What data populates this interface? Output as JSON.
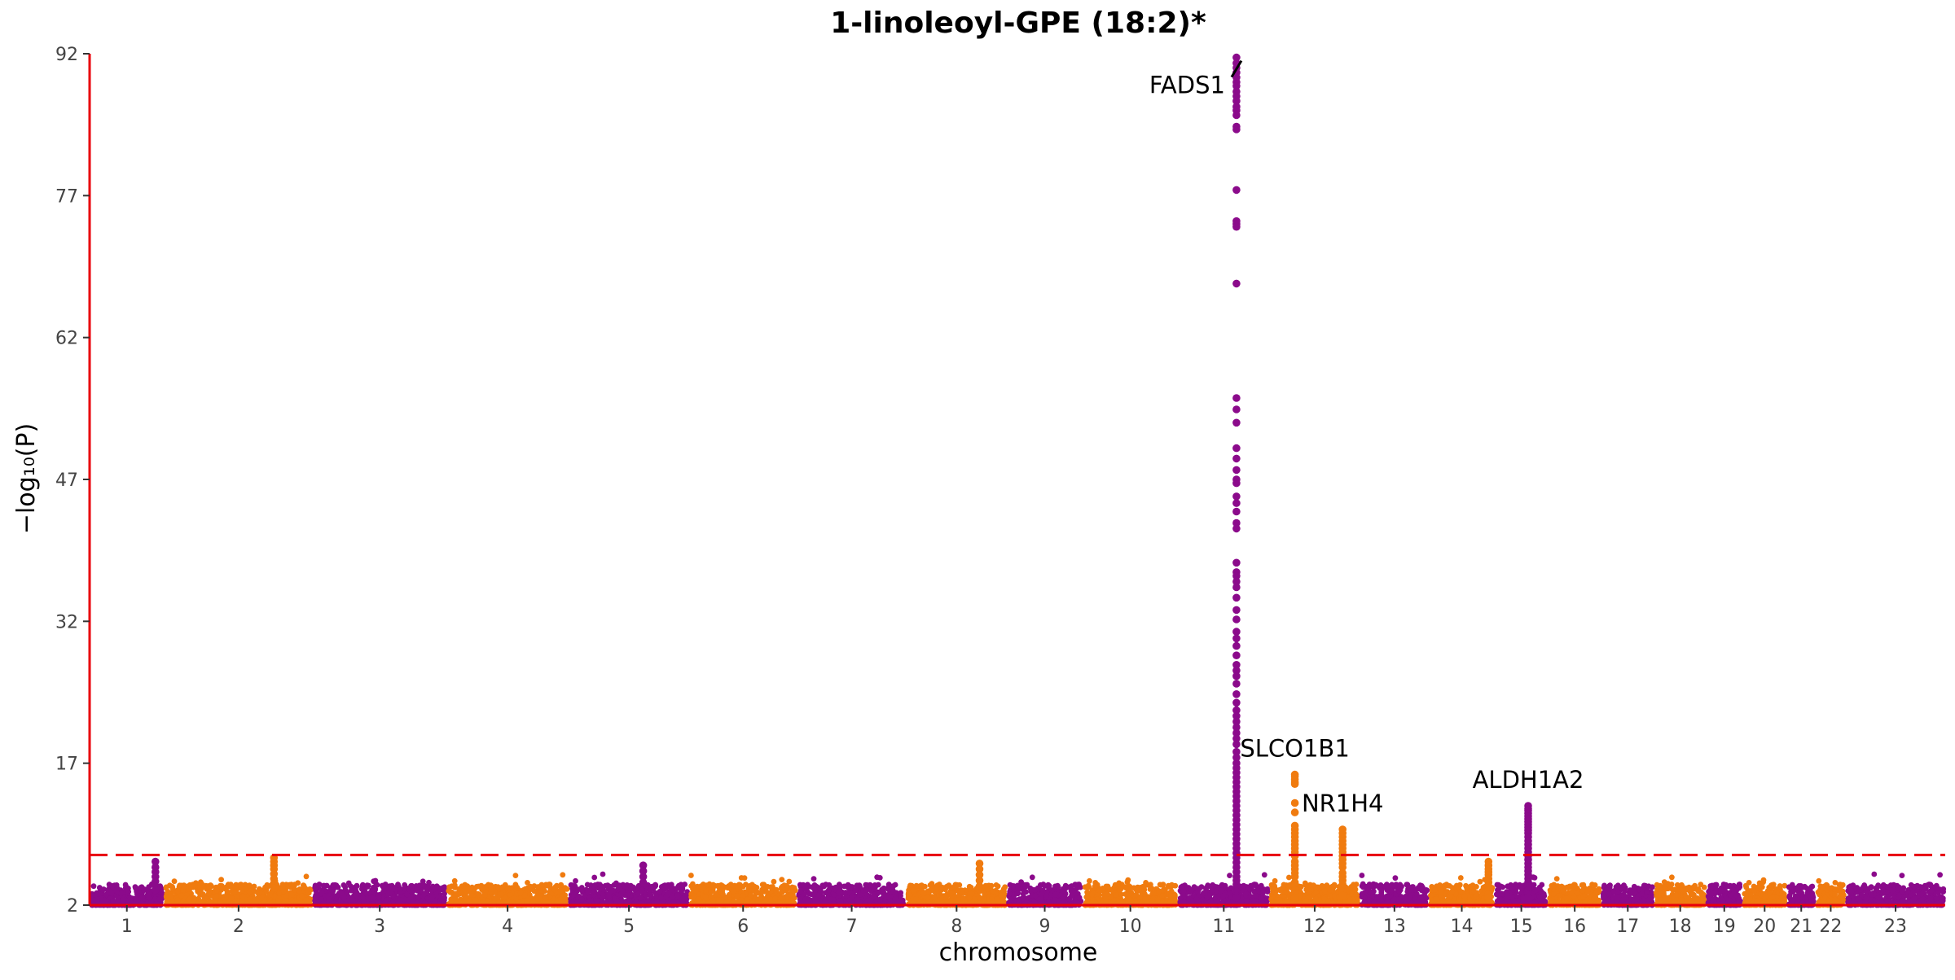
{
  "chart_data": {
    "type": "scatter",
    "subtype": "manhattan",
    "title": "1-linoleoyl-GPE (18:2)*",
    "xlabel": "chromosome",
    "ylabel": "−log₁₀(P)",
    "ylim": [
      2,
      92
    ],
    "y_ticks": [
      2,
      17,
      32,
      47,
      62,
      77,
      92
    ],
    "significance_line": 7.3,
    "colors": {
      "odd": "#8b0a8b",
      "even": "#f07b0f",
      "axis": "#e8000b",
      "threshold": "#e8000b"
    },
    "chromosomes": [
      {
        "label": "1",
        "start": 0,
        "end": 120
      },
      {
        "label": "2",
        "start": 120,
        "end": 360
      },
      {
        "label": "3",
        "start": 360,
        "end": 575
      },
      {
        "label": "4",
        "start": 575,
        "end": 772
      },
      {
        "label": "5",
        "start": 772,
        "end": 966
      },
      {
        "label": "6",
        "start": 966,
        "end": 1140
      },
      {
        "label": "7",
        "start": 1140,
        "end": 1316
      },
      {
        "label": "8",
        "start": 1316,
        "end": 1478
      },
      {
        "label": "9",
        "start": 1478,
        "end": 1600
      },
      {
        "label": "10",
        "start": 1600,
        "end": 1754
      },
      {
        "label": "11",
        "start": 1754,
        "end": 1901
      },
      {
        "label": "12",
        "start": 1901,
        "end": 2047
      },
      {
        "label": "13",
        "start": 2047,
        "end": 2158
      },
      {
        "label": "14",
        "start": 2158,
        "end": 2264
      },
      {
        "label": "15",
        "start": 2264,
        "end": 2350
      },
      {
        "label": "16",
        "start": 2350,
        "end": 2436
      },
      {
        "label": "17",
        "start": 2436,
        "end": 2521
      },
      {
        "label": "18",
        "start": 2521,
        "end": 2605
      },
      {
        "label": "19",
        "start": 2605,
        "end": 2663
      },
      {
        "label": "20",
        "start": 2663,
        "end": 2735
      },
      {
        "label": "21",
        "start": 2735,
        "end": 2781
      },
      {
        "label": "22",
        "start": 2781,
        "end": 2830
      },
      {
        "label": "23",
        "start": 2830,
        "end": 2990
      }
    ],
    "x_range": [
      0,
      2990
    ],
    "peaks": [
      {
        "chrom": "11",
        "x": 1848,
        "values": [
          91.6,
          91,
          90.5,
          90,
          89.5,
          89,
          88.6,
          88,
          87.5,
          87,
          86.4,
          86,
          85.5,
          84.3,
          84,
          77.6,
          74.3,
          74,
          73.7,
          67.7,
          55.6,
          54.4,
          53,
          50.3,
          49.2,
          48,
          47,
          46.6,
          45.2,
          44.5,
          43.6,
          42.4,
          41.8,
          38.2,
          37.2,
          36.8,
          36.2,
          35.6,
          34.5,
          33.2,
          32.2,
          30.9,
          30.2,
          29.4,
          28.4,
          27.4,
          26.8,
          26.2,
          25.4,
          24.3,
          23.4,
          22.6,
          22,
          21.4,
          20.8,
          20.2,
          19.6,
          19,
          18.2,
          17.6,
          17,
          16.5,
          16,
          15.5,
          15,
          14.5,
          14,
          13.5,
          13,
          12.5,
          12,
          11.5,
          11,
          10.5,
          10,
          9.5,
          9,
          8.5,
          8,
          7.5,
          7,
          6.5,
          6,
          5.5,
          5,
          4.6,
          4.2,
          3.8,
          3.4,
          3,
          2.8
        ]
      },
      {
        "chrom": "12",
        "x": 1942,
        "values": [
          15.8,
          15.6,
          15.3,
          15,
          14.8,
          12.8,
          11.8,
          10.4,
          10,
          9.6,
          9.2,
          8.8,
          8.4,
          8,
          7.6,
          7.2,
          6.6,
          6.2,
          5.8,
          5.4,
          5,
          4.4,
          4,
          3.6,
          3.2,
          2.8
        ]
      },
      {
        "chrom": "12",
        "x": 2019,
        "values": [
          10,
          9.6,
          9.2,
          8.8,
          8.4,
          8,
          7.6,
          7.2,
          6.8,
          6.4,
          6,
          5.4,
          5,
          4.6,
          4.2,
          3.8,
          3.4,
          3
        ]
      },
      {
        "chrom": "14",
        "x": 2254,
        "values": [
          6.6,
          6.2,
          5.8,
          5.5,
          5.2,
          4.8,
          4.4,
          4,
          3.6,
          3.2,
          2.8
        ]
      },
      {
        "chrom": "15",
        "x": 2318,
        "values": [
          12.5,
          12.2,
          12,
          11.7,
          11.4,
          11.1,
          10.8,
          10.5,
          10.2,
          9.9,
          9.6,
          9.2,
          8.8,
          8.4,
          8,
          7.6,
          7.2,
          6.8,
          6.4,
          6,
          5.6,
          5.2,
          4.8,
          4.4,
          4,
          3.6,
          3.2,
          2.8
        ]
      },
      {
        "chrom": "1",
        "x": 106,
        "values": [
          6.6,
          6,
          5.5,
          5,
          4.5,
          4,
          3.6
        ]
      },
      {
        "chrom": "2",
        "x": 297,
        "values": [
          7,
          6.6,
          6.2,
          5.8,
          5.3,
          4.8,
          4.3,
          3.8
        ]
      },
      {
        "chrom": "8",
        "x": 1434,
        "values": [
          6.4,
          5.8,
          5.2,
          4.6,
          4
        ]
      },
      {
        "chrom": "5",
        "x": 892,
        "values": [
          6.2,
          5.6,
          5,
          4.4
        ]
      }
    ],
    "annotations": [
      {
        "gene": "FADS1",
        "x": 1848,
        "y": 91.6
      },
      {
        "gene": "SLCO1B1",
        "x": 1942,
        "y": 15.8
      },
      {
        "gene": "NR1H4",
        "x": 2019,
        "y": 10
      },
      {
        "gene": "ALDH1A2",
        "x": 2318,
        "y": 12.5
      }
    ]
  }
}
